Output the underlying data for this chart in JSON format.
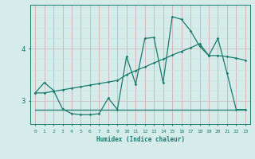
{
  "xlabel": "Humidex (Indice chaleur)",
  "bg_color": "#d5ecea",
  "line_color": "#1a7a6e",
  "vgrid_color": "#d4a0a0",
  "hgrid_color": "#d4a0a0",
  "light_hgrid_color": "#c8e0dc",
  "xlim": [
    -0.5,
    23.5
  ],
  "ylim": [
    2.55,
    4.85
  ],
  "yticks": [
    3,
    4
  ],
  "xticks": [
    0,
    1,
    2,
    3,
    4,
    5,
    6,
    7,
    8,
    9,
    10,
    11,
    12,
    13,
    14,
    15,
    16,
    17,
    18,
    19,
    20,
    21,
    22,
    23
  ],
  "series1_x": [
    0,
    1,
    2,
    3,
    4,
    5,
    6,
    7,
    8,
    9,
    10,
    11,
    12,
    13,
    14,
    15,
    16,
    17,
    18,
    19,
    20,
    21,
    22,
    23
  ],
  "series1_y": [
    3.15,
    3.35,
    3.2,
    2.84,
    2.75,
    2.73,
    2.73,
    2.75,
    3.05,
    2.83,
    3.85,
    3.32,
    4.2,
    4.22,
    3.35,
    4.62,
    4.57,
    4.35,
    4.05,
    3.87,
    4.2,
    3.53,
    2.83,
    2.83
  ],
  "series2_x": [
    0,
    1,
    2,
    3,
    4,
    5,
    6,
    7,
    8,
    9,
    10,
    11,
    12,
    13,
    14,
    15,
    16,
    17,
    18,
    19,
    20,
    21,
    22,
    23
  ],
  "series2_y": [
    3.15,
    3.15,
    3.18,
    3.21,
    3.24,
    3.27,
    3.3,
    3.33,
    3.36,
    3.39,
    3.5,
    3.58,
    3.65,
    3.73,
    3.8,
    3.88,
    3.95,
    4.02,
    4.1,
    3.87,
    3.87,
    3.85,
    3.82,
    3.78
  ],
  "series3_x": [
    0,
    23
  ],
  "series3_y": [
    2.83,
    2.83
  ]
}
